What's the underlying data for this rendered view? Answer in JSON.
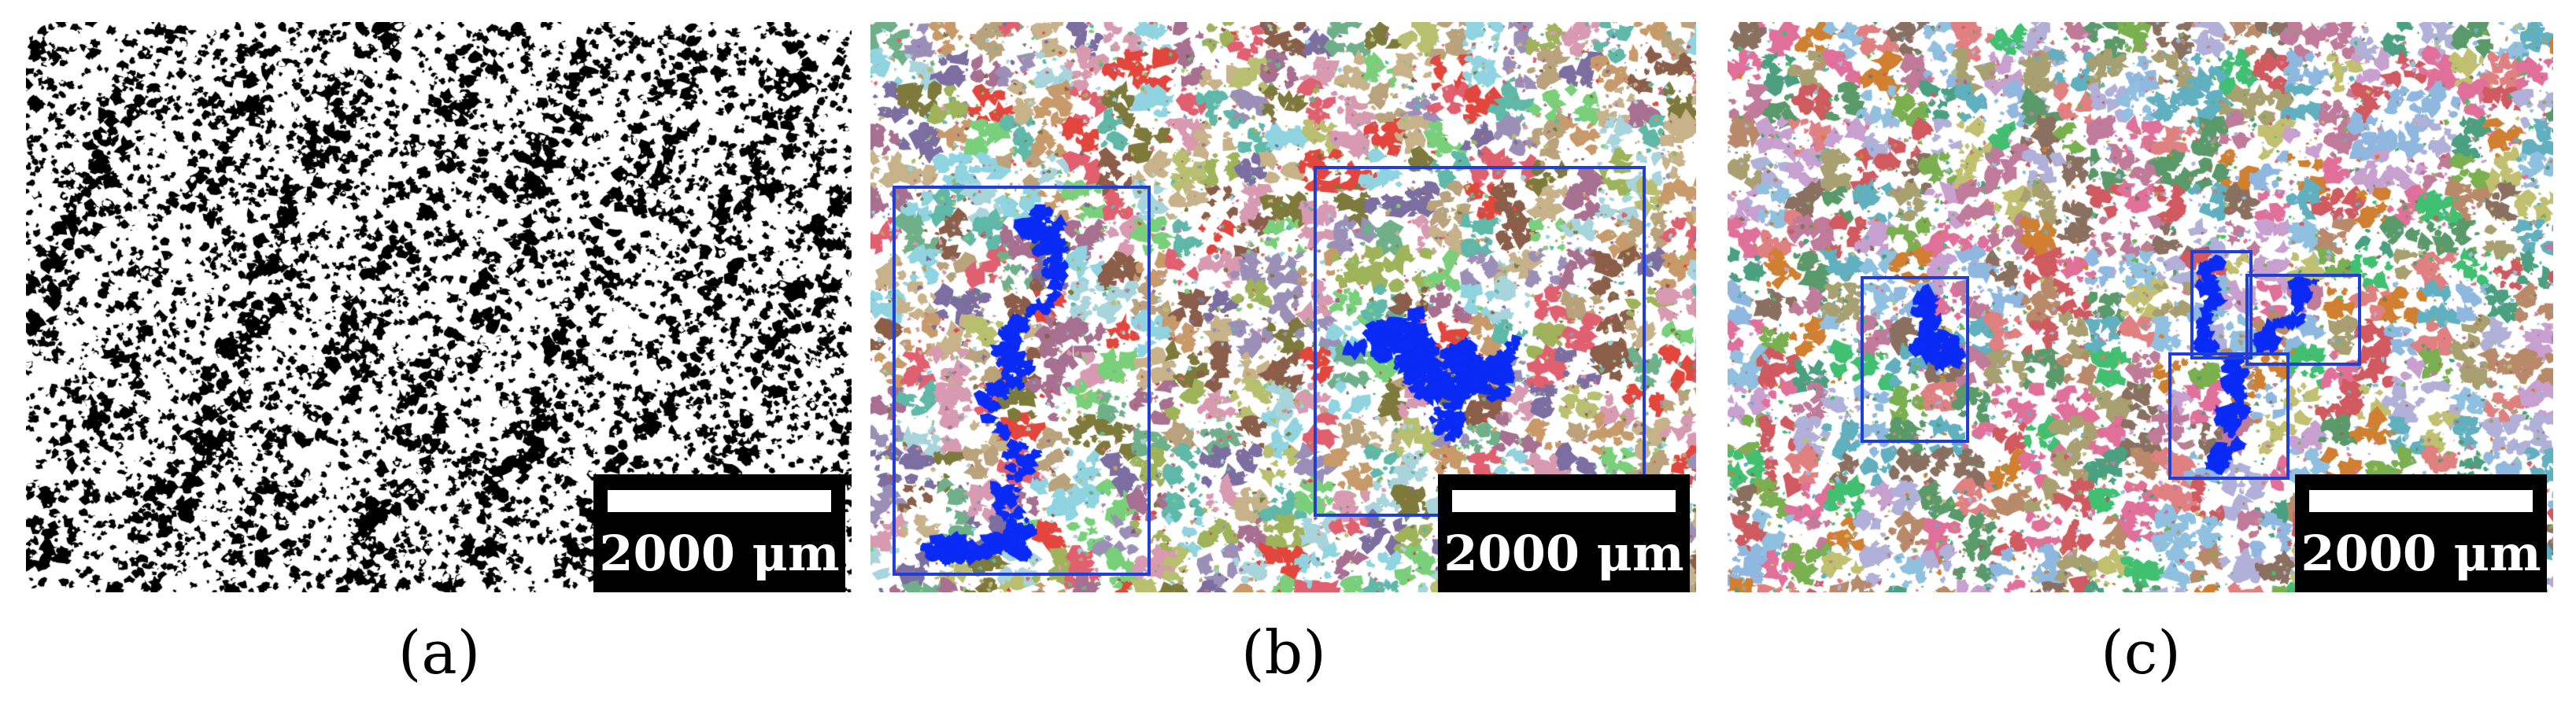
{
  "panels": [
    {
      "id": "a",
      "caption": "(a)",
      "scale_label": "2000 μm",
      "style": "binary",
      "colors": [
        "#000000",
        "#ffffff"
      ]
    },
    {
      "id": "b",
      "caption": "(b)",
      "scale_label": "2000 μm",
      "style": "colored-clusters",
      "highlight_color": "#0a2bf5",
      "box_color": "#1f3fd6",
      "palette": [
        "#b9a27c",
        "#9fb35a",
        "#c7b28a",
        "#8fd4e0",
        "#a8d4dc",
        "#7d7a3c",
        "#c89a6a",
        "#8b5e4a",
        "#9b8fb8",
        "#6fb08a",
        "#d89ab0",
        "#7ad07a",
        "#a87090",
        "#5fb8a8",
        "#e06070",
        "#7c6ea0",
        "#b8c070",
        "#e3463c"
      ]
    },
    {
      "id": "c",
      "caption": "(c)",
      "scale_label": "2000 μm",
      "style": "colored-clusters",
      "highlight_color": "#0a2bf5",
      "box_color": "#1f3fd6",
      "palette": [
        "#e0709a",
        "#b88a6a",
        "#40c070",
        "#8fb8e0",
        "#a8a070",
        "#d08030",
        "#5a9a6a",
        "#c07a9a",
        "#90c0e0",
        "#c8a0d0",
        "#7ab050",
        "#e08080",
        "#4aa080",
        "#b0b0d8",
        "#d05a60",
        "#8a7060",
        "#60b0c0",
        "#c0c070"
      ]
    }
  ]
}
